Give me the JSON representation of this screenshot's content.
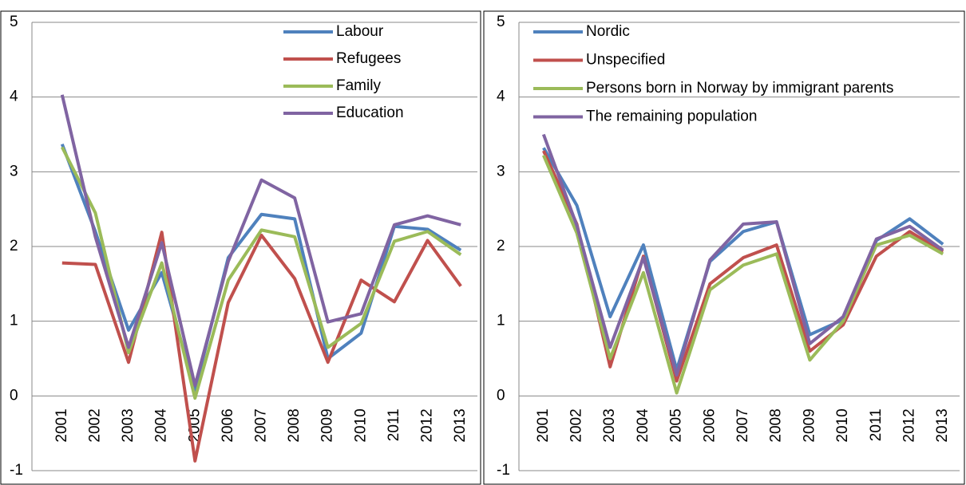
{
  "chart_data": [
    {
      "type": "line",
      "categories": [
        "2001",
        "2002",
        "2003",
        "2004",
        "2005",
        "2006",
        "2007",
        "2008",
        "2009",
        "2010",
        "2011",
        "2012",
        "2013"
      ],
      "ylim": [
        -1,
        5
      ],
      "yticks": [
        -1,
        0,
        1,
        2,
        3,
        4,
        5
      ],
      "grid": true,
      "legend": "upper-right",
      "series": [
        {
          "name": "Labour",
          "color": "#4f81bd",
          "values": [
            3.37,
            2.2,
            0.88,
            1.65,
            0.08,
            1.85,
            2.43,
            2.37,
            0.5,
            0.84,
            2.27,
            2.23,
            1.95
          ]
        },
        {
          "name": "Refugees",
          "color": "#c0504d",
          "values": [
            1.78,
            1.76,
            0.45,
            2.19,
            -0.87,
            1.25,
            2.15,
            1.57,
            0.45,
            1.55,
            1.26,
            2.08,
            1.47
          ]
        },
        {
          "name": "Family",
          "color": "#9bbb59",
          "values": [
            3.33,
            2.45,
            0.58,
            1.78,
            -0.03,
            1.55,
            2.22,
            2.13,
            0.65,
            0.97,
            2.07,
            2.2,
            1.89
          ]
        },
        {
          "name": "Education",
          "color": "#8064a2",
          "values": [
            4.03,
            2.13,
            0.65,
            2.05,
            0.14,
            1.8,
            2.89,
            2.65,
            0.99,
            1.1,
            2.29,
            2.41,
            2.29
          ]
        }
      ]
    },
    {
      "type": "line",
      "categories": [
        "2001",
        "2002",
        "2003",
        "2004",
        "2005",
        "2006",
        "2007",
        "2008",
        "2009",
        "2010",
        "2011",
        "2012",
        "2013"
      ],
      "ylim": [
        -1,
        5
      ],
      "yticks": [
        -1,
        0,
        1,
        2,
        3,
        4,
        5
      ],
      "grid": true,
      "legend": "upper-left",
      "series": [
        {
          "name": "Nordic",
          "color": "#4f81bd",
          "values": [
            3.32,
            2.55,
            1.06,
            2.02,
            0.35,
            1.8,
            2.2,
            2.33,
            0.82,
            1.02,
            2.08,
            2.37,
            2.03
          ]
        },
        {
          "name": "Unspecified",
          "color": "#c0504d",
          "values": [
            3.28,
            2.3,
            0.39,
            1.87,
            0.2,
            1.5,
            1.85,
            2.02,
            0.6,
            0.95,
            1.87,
            2.2,
            1.93
          ]
        },
        {
          "name": "Persons born in Norway by immigrant parents",
          "color": "#9bbb59",
          "values": [
            3.22,
            2.18,
            0.5,
            1.65,
            0.04,
            1.42,
            1.75,
            1.9,
            0.48,
            1.0,
            2.02,
            2.15,
            1.9
          ]
        },
        {
          "name": "The remaining population",
          "color": "#8064a2",
          "values": [
            3.5,
            2.28,
            0.65,
            1.85,
            0.28,
            1.82,
            2.3,
            2.33,
            0.7,
            1.06,
            2.1,
            2.27,
            1.95
          ]
        }
      ]
    }
  ]
}
